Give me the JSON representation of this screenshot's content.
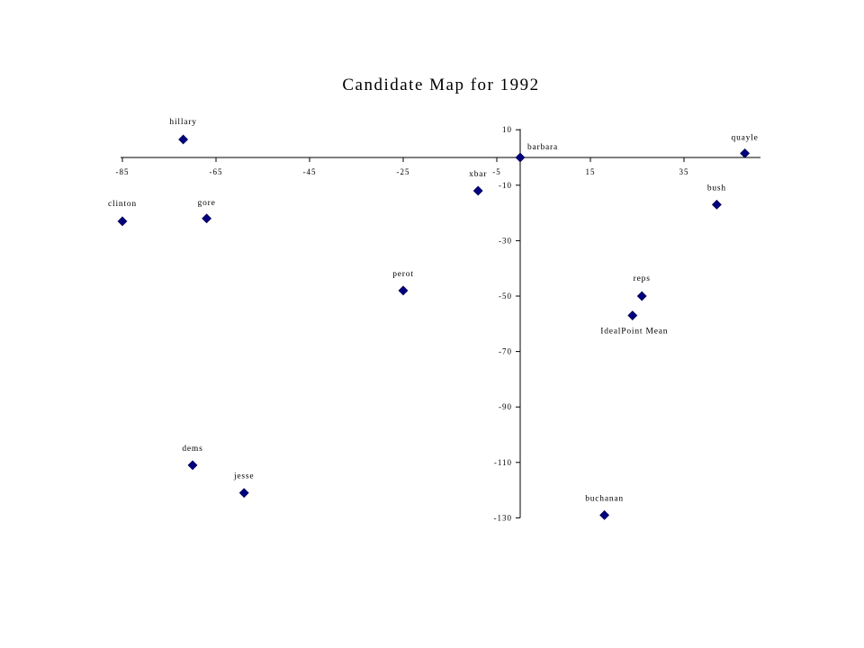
{
  "chart_data": {
    "type": "scatter",
    "title": "Candidate Map for 1992",
    "xlabel": "",
    "ylabel": "",
    "xlim": [
      -85,
      50
    ],
    "ylim": [
      -130,
      10
    ],
    "x_ticks": [
      -85,
      -65,
      -45,
      -25,
      -5,
      15,
      35
    ],
    "x_tick_labels": [
      "-85",
      "-65",
      "-45",
      "-25",
      "-5",
      "15",
      "35"
    ],
    "y_ticks": [
      10,
      -10,
      -30,
      -50,
      -70,
      -90,
      -110,
      -130
    ],
    "y_tick_labels": [
      "10",
      "-10",
      "-30",
      "-50",
      "-70",
      "-90",
      "-110",
      "-130"
    ],
    "marker_color": "#000080",
    "grid": false,
    "legend": "none",
    "points": [
      {
        "label": "hillary",
        "x": -72,
        "y": 6.5
      },
      {
        "label": "clinton",
        "x": -85,
        "y": -23
      },
      {
        "label": "gore",
        "x": -67,
        "y": -22
      },
      {
        "label": "xbar",
        "x": -9,
        "y": -12
      },
      {
        "label": "barbara",
        "x": 0,
        "y": 0
      },
      {
        "label": "quayle",
        "x": 48,
        "y": 1.5
      },
      {
        "label": "bush",
        "x": 42,
        "y": -17
      },
      {
        "label": "perot",
        "x": -25,
        "y": -48
      },
      {
        "label": "reps",
        "x": 26,
        "y": -50
      },
      {
        "label": "IdealPoint Mean",
        "x": 24,
        "y": -57
      },
      {
        "label": "dems",
        "x": -70,
        "y": -111
      },
      {
        "label": "jesse",
        "x": -59,
        "y": -121
      },
      {
        "label": "buchanan",
        "x": 18,
        "y": -129
      }
    ]
  }
}
